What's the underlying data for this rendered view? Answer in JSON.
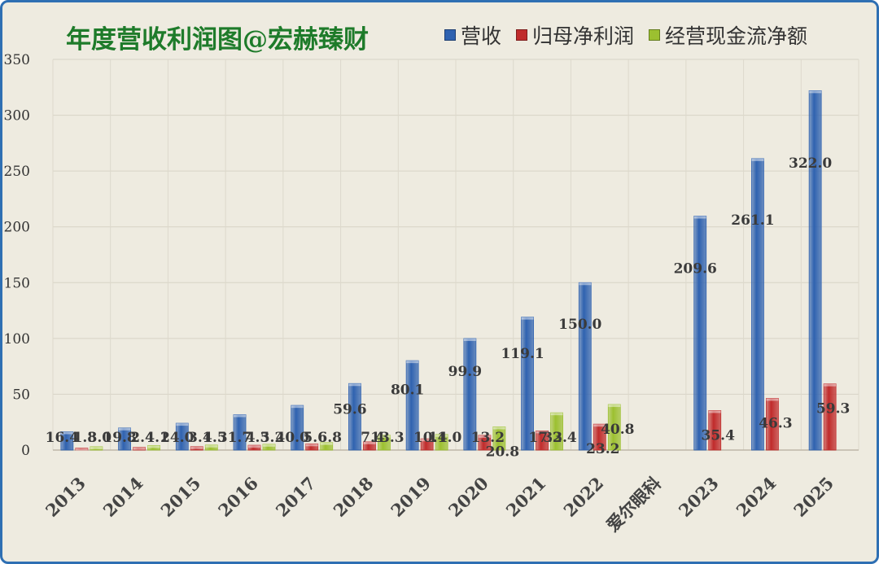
{
  "chart_data": {
    "type": "bar",
    "title": "年度营收利润图@宏赫臻财",
    "categories": [
      "2013",
      "2014",
      "2015",
      "2016",
      "2017",
      "2018",
      "2019",
      "2020",
      "2021",
      "2022",
      "爱尔眼科",
      "2023",
      "2024",
      "2025"
    ],
    "series": [
      {
        "name": "营收",
        "color": "#2f62b0",
        "values": [
          16.4,
          19.8,
          24.0,
          31.7,
          40.0,
          59.6,
          80.1,
          99.9,
          119.1,
          150.0,
          null,
          209.6,
          261.1,
          322.0
        ],
        "labels": [
          "16.4",
          "19.8",
          "24.0",
          "31.7",
          "40.0",
          "59.6",
          "80.1",
          "99.9",
          "119.1",
          "150.0",
          "",
          "209.6",
          "261.1",
          "322.0"
        ]
      },
      {
        "name": "归母净利润",
        "color": "#c02b2b",
        "values": [
          1.8,
          2.4,
          3.1,
          4.3,
          5.6,
          7.4,
          10.1,
          13.2,
          17.2,
          23.2,
          null,
          35.4,
          46.3,
          59.3
        ],
        "labels": [
          "1.8",
          "2.4",
          "3.1",
          "4.3",
          "5.6",
          "7.4",
          "10.1",
          "13.2",
          "17.2",
          "23.2",
          "",
          "35.4",
          "46.3",
          "59.3"
        ]
      },
      {
        "name": "经营现金流净额",
        "color": "#9cc030",
        "values": [
          3.0,
          4.1,
          4.5,
          5.2,
          6.8,
          13.3,
          14.0,
          20.8,
          33.4,
          40.8,
          null,
          null,
          null,
          null
        ],
        "labels": [
          "3.0",
          "4.1",
          "4.5",
          "5.2",
          "6.8",
          "13.3",
          "14.0",
          "20.8",
          "33.4",
          "40.8",
          "",
          "",
          "",
          ""
        ]
      }
    ],
    "ylim": [
      0,
      350
    ],
    "yticks": [
      0,
      50,
      100,
      150,
      200,
      250,
      300,
      350
    ],
    "xlabel": "",
    "ylabel": "",
    "grid": true,
    "legend": "top-right"
  }
}
